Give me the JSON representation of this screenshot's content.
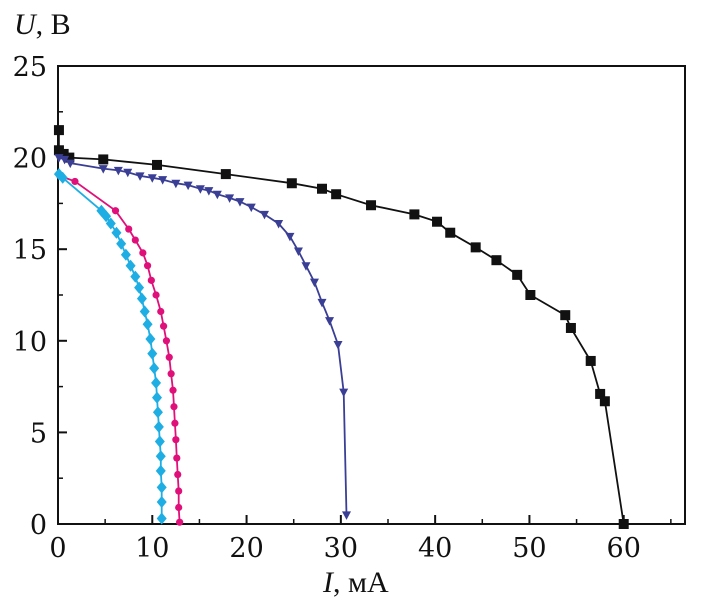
{
  "chart_data": {
    "type": "line",
    "xlabel": {
      "symbol": "I",
      "unit": ", мА"
    },
    "ylabel": {
      "symbol": "U",
      "unit": ", В"
    },
    "xlim": [
      0,
      66.5
    ],
    "ylim": [
      0,
      25
    ],
    "xticks": [
      0,
      10,
      20,
      30,
      40,
      50,
      60
    ],
    "yticks": [
      0,
      5,
      10,
      15,
      20,
      25
    ],
    "grid": false,
    "legend": "none",
    "series": [
      {
        "marker": "square",
        "color": "#111111",
        "points": [
          [
            0.1,
            21.5
          ],
          [
            0.1,
            20.4
          ],
          [
            0.6,
            20.2
          ],
          [
            1.2,
            20.0
          ],
          [
            4.8,
            19.9
          ],
          [
            10.5,
            19.6
          ],
          [
            17.8,
            19.1
          ],
          [
            24.8,
            18.6
          ],
          [
            28,
            18.3
          ],
          [
            29.5,
            18.0
          ],
          [
            33.2,
            17.4
          ],
          [
            37.8,
            16.9
          ],
          [
            40.2,
            16.5
          ],
          [
            41.6,
            15.9
          ],
          [
            44.3,
            15.1
          ],
          [
            46.5,
            14.4
          ],
          [
            48.7,
            13.6
          ],
          [
            50.1,
            12.5
          ],
          [
            53.8,
            11.4
          ],
          [
            54.4,
            10.7
          ],
          [
            56.5,
            8.9
          ],
          [
            57.5,
            7.1
          ],
          [
            58,
            6.7
          ],
          [
            60,
            0
          ]
        ]
      },
      {
        "marker": "triangle",
        "color": "#3a3f95",
        "points": [
          [
            0.1,
            20.0
          ],
          [
            0.7,
            19.9
          ],
          [
            1.3,
            19.7
          ],
          [
            4.8,
            19.4
          ],
          [
            6.4,
            19.3
          ],
          [
            7.4,
            19.2
          ],
          [
            8.7,
            19.0
          ],
          [
            10.0,
            18.9
          ],
          [
            11.1,
            18.8
          ],
          [
            12.5,
            18.6
          ],
          [
            13.8,
            18.5
          ],
          [
            15.1,
            18.3
          ],
          [
            16.0,
            18.2
          ],
          [
            16.9,
            18.0
          ],
          [
            18.2,
            17.8
          ],
          [
            19.3,
            17.6
          ],
          [
            20.5,
            17.3
          ],
          [
            21.9,
            16.9
          ],
          [
            23.4,
            16.4
          ],
          [
            24.6,
            15.7
          ],
          [
            25.5,
            14.9
          ],
          [
            26.3,
            14.1
          ],
          [
            27.2,
            13.2
          ],
          [
            28.0,
            12.1
          ],
          [
            28.8,
            11.1
          ],
          [
            29.7,
            9.8
          ],
          [
            30.3,
            7.2
          ],
          [
            30.6,
            0.5
          ]
        ]
      },
      {
        "marker": "circle",
        "color": "#e0107a",
        "points": [
          [
            0.2,
            19.0
          ],
          [
            1.8,
            18.7
          ],
          [
            6.1,
            17.1
          ],
          [
            7.5,
            16.1
          ],
          [
            8.2,
            15.5
          ],
          [
            9.0,
            14.8
          ],
          [
            9.5,
            14.1
          ],
          [
            9.9,
            13.3
          ],
          [
            10.4,
            12.5
          ],
          [
            10.9,
            11.6
          ],
          [
            11.2,
            10.8
          ],
          [
            11.5,
            10.0
          ],
          [
            11.8,
            9.1
          ],
          [
            12.0,
            8.2
          ],
          [
            12.2,
            7.3
          ],
          [
            12.3,
            6.4
          ],
          [
            12.4,
            5.5
          ],
          [
            12.5,
            4.6
          ],
          [
            12.6,
            3.6
          ],
          [
            12.7,
            2.7
          ],
          [
            12.8,
            1.8
          ],
          [
            12.8,
            0.9
          ],
          [
            12.9,
            0.1
          ]
        ]
      },
      {
        "marker": "diamond",
        "color": "#1eaee3",
        "points": [
          [
            0.1,
            19.1
          ],
          [
            0.5,
            18.9
          ],
          [
            4.6,
            17.1
          ],
          [
            5.1,
            16.8
          ],
          [
            5.6,
            16.4
          ],
          [
            6.2,
            15.9
          ],
          [
            6.7,
            15.3
          ],
          [
            7.2,
            14.7
          ],
          [
            7.7,
            14.1
          ],
          [
            8.2,
            13.5
          ],
          [
            8.6,
            12.9
          ],
          [
            8.9,
            12.3
          ],
          [
            9.2,
            11.6
          ],
          [
            9.5,
            10.9
          ],
          [
            9.8,
            10.1
          ],
          [
            10.0,
            9.3
          ],
          [
            10.2,
            8.5
          ],
          [
            10.4,
            7.7
          ],
          [
            10.5,
            6.9
          ],
          [
            10.6,
            6.1
          ],
          [
            10.7,
            5.3
          ],
          [
            10.8,
            4.5
          ],
          [
            10.9,
            3.7
          ],
          [
            10.9,
            2.9
          ],
          [
            11.0,
            2.0
          ],
          [
            11.0,
            1.2
          ],
          [
            11.0,
            0.3
          ]
        ]
      }
    ]
  }
}
